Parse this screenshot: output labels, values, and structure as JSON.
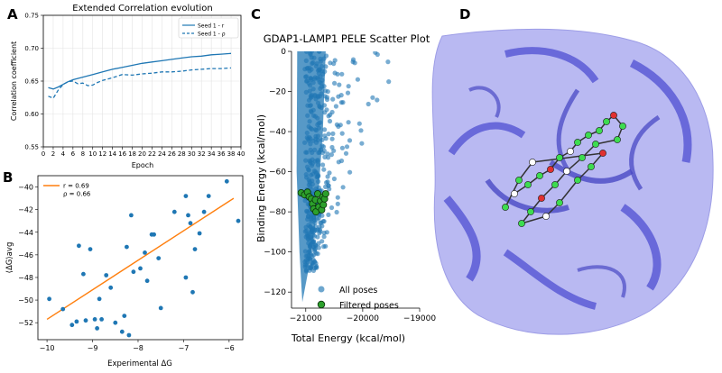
{
  "panel_letters": [
    "A",
    "B",
    "C",
    "D"
  ],
  "chart_data": [
    {
      "panel": "A",
      "type": "line",
      "title": "Extended Correlation evolution",
      "xlabel": "Epoch",
      "ylabel": "Correlation coefficient",
      "xlim": [
        0,
        40
      ],
      "ylim": [
        0.55,
        0.75
      ],
      "xticks": [
        0,
        2,
        4,
        6,
        8,
        10,
        12,
        14,
        16,
        18,
        20,
        22,
        24,
        26,
        28,
        30,
        32,
        34,
        36,
        38,
        40
      ],
      "yticks": [
        0.55,
        0.6,
        0.65,
        0.7,
        0.75
      ],
      "grid": true,
      "legend_position": "top-right",
      "color": "#1f77b4",
      "series": [
        {
          "name": "Seed 1 - r",
          "style": "solid",
          "x": [
            1,
            2,
            3,
            4,
            5,
            6,
            8,
            10,
            12,
            14,
            16,
            18,
            20,
            22,
            24,
            26,
            28,
            30,
            32,
            34,
            36,
            38
          ],
          "values": [
            0.64,
            0.638,
            0.641,
            0.645,
            0.649,
            0.652,
            0.656,
            0.66,
            0.664,
            0.668,
            0.671,
            0.674,
            0.677,
            0.679,
            0.681,
            0.683,
            0.685,
            0.687,
            0.688,
            0.69,
            0.691,
            0.692
          ]
        },
        {
          "name": "Seed 1 - ρ",
          "style": "dashed",
          "x": [
            1,
            2,
            3,
            4,
            5,
            6,
            7,
            8,
            9,
            10,
            11,
            12,
            14,
            16,
            18,
            20,
            22,
            24,
            26,
            28,
            30,
            32,
            34,
            36,
            38
          ],
          "values": [
            0.627,
            0.624,
            0.636,
            0.645,
            0.649,
            0.65,
            0.646,
            0.647,
            0.643,
            0.644,
            0.648,
            0.651,
            0.655,
            0.66,
            0.659,
            0.661,
            0.662,
            0.664,
            0.664,
            0.665,
            0.667,
            0.668,
            0.669,
            0.669,
            0.67
          ]
        }
      ]
    },
    {
      "panel": "B",
      "type": "scatter",
      "xlabel": "Experimental ΔG",
      "ylabel": "⟨ΔG⟩avg",
      "xlim": [
        -10.2,
        -5.7
      ],
      "ylim": [
        -53.5,
        -39.0
      ],
      "xticks": [
        -10,
        -9,
        -8,
        -7,
        -6
      ],
      "yticks": [
        -52,
        -50,
        -48,
        -46,
        -44,
        -42,
        -40
      ],
      "legend": [
        "r = 0.69",
        "ρ = 0.66"
      ],
      "legend_position": "top-left",
      "point_color": "#1f77b4",
      "fit_color": "#ff7f0e",
      "fit_line": {
        "x": [
          -10.0,
          -5.9
        ],
        "y": [
          -51.7,
          -41.0
        ]
      },
      "points": [
        [
          -9.95,
          -49.9
        ],
        [
          -9.65,
          -50.8
        ],
        [
          -9.45,
          -52.2
        ],
        [
          -9.35,
          -51.9
        ],
        [
          -9.3,
          -45.2
        ],
        [
          -9.2,
          -47.7
        ],
        [
          -9.15,
          -51.8
        ],
        [
          -9.05,
          -45.5
        ],
        [
          -8.95,
          -51.7
        ],
        [
          -8.9,
          -52.5
        ],
        [
          -8.85,
          -49.9
        ],
        [
          -8.8,
          -51.7
        ],
        [
          -8.7,
          -47.8
        ],
        [
          -8.6,
          -48.9
        ],
        [
          -8.5,
          -52.0
        ],
        [
          -8.35,
          -52.8
        ],
        [
          -8.3,
          -51.4
        ],
        [
          -8.25,
          -45.3
        ],
        [
          -8.2,
          -53.1
        ],
        [
          -8.15,
          -42.5
        ],
        [
          -8.1,
          -47.5
        ],
        [
          -7.95,
          -47.2
        ],
        [
          -7.85,
          -45.8
        ],
        [
          -7.8,
          -48.3
        ],
        [
          -7.7,
          -44.2
        ],
        [
          -7.65,
          -44.2
        ],
        [
          -7.55,
          -46.3
        ],
        [
          -7.5,
          -50.7
        ],
        [
          -7.2,
          -42.2
        ],
        [
          -6.95,
          -48.0
        ],
        [
          -6.95,
          -40.8
        ],
        [
          -6.9,
          -42.5
        ],
        [
          -6.85,
          -43.2
        ],
        [
          -6.8,
          -49.3
        ],
        [
          -6.75,
          -45.5
        ],
        [
          -6.65,
          -44.1
        ],
        [
          -6.55,
          -42.2
        ],
        [
          -6.45,
          -40.8
        ],
        [
          -6.05,
          -39.5
        ],
        [
          -5.8,
          -43.0
        ]
      ]
    },
    {
      "panel": "C",
      "type": "scatter",
      "title": "GDAP1-LAMP1 PELE Scatter Plot",
      "xlabel": "Total Energy (kcal/mol)",
      "ylabel": "Binding Energy (kcal/mol)",
      "xlim": [
        -21250,
        -19000
      ],
      "ylim": [
        -128,
        0
      ],
      "xticks": [
        -21000,
        -20000,
        -19000
      ],
      "yticks": [
        0,
        -20,
        -40,
        -60,
        -80,
        -100,
        -120
      ],
      "legend": [
        "All poses",
        "Filtered poses"
      ],
      "legend_position": "bottom-right",
      "all_color": "#1f77b4",
      "filtered_color": "#2ca02c",
      "filtered_points": [
        [
          -21080,
          -70.5
        ],
        [
          -21020,
          -71.5
        ],
        [
          -20970,
          -70.2
        ],
        [
          -20940,
          -72.5
        ],
        [
          -20900,
          -73.5
        ],
        [
          -20880,
          -76.0
        ],
        [
          -20860,
          -78.5
        ],
        [
          -20830,
          -74.0
        ],
        [
          -20820,
          -80.0
        ],
        [
          -20790,
          -71.0
        ],
        [
          -20770,
          -77.5
        ],
        [
          -20740,
          -74.5
        ],
        [
          -20720,
          -79.0
        ],
        [
          -20700,
          -72.5
        ],
        [
          -20690,
          -76.5
        ],
        [
          -20670,
          -73.5
        ],
        [
          -20650,
          -71.0
        ]
      ]
    },
    {
      "panel": "D",
      "type": "image",
      "colors": {
        "protein": "#5b5bd6",
        "surface": "#b9b9f2",
        "ligand": "#3ddc50",
        "oxygen": "#e03030"
      }
    }
  ]
}
